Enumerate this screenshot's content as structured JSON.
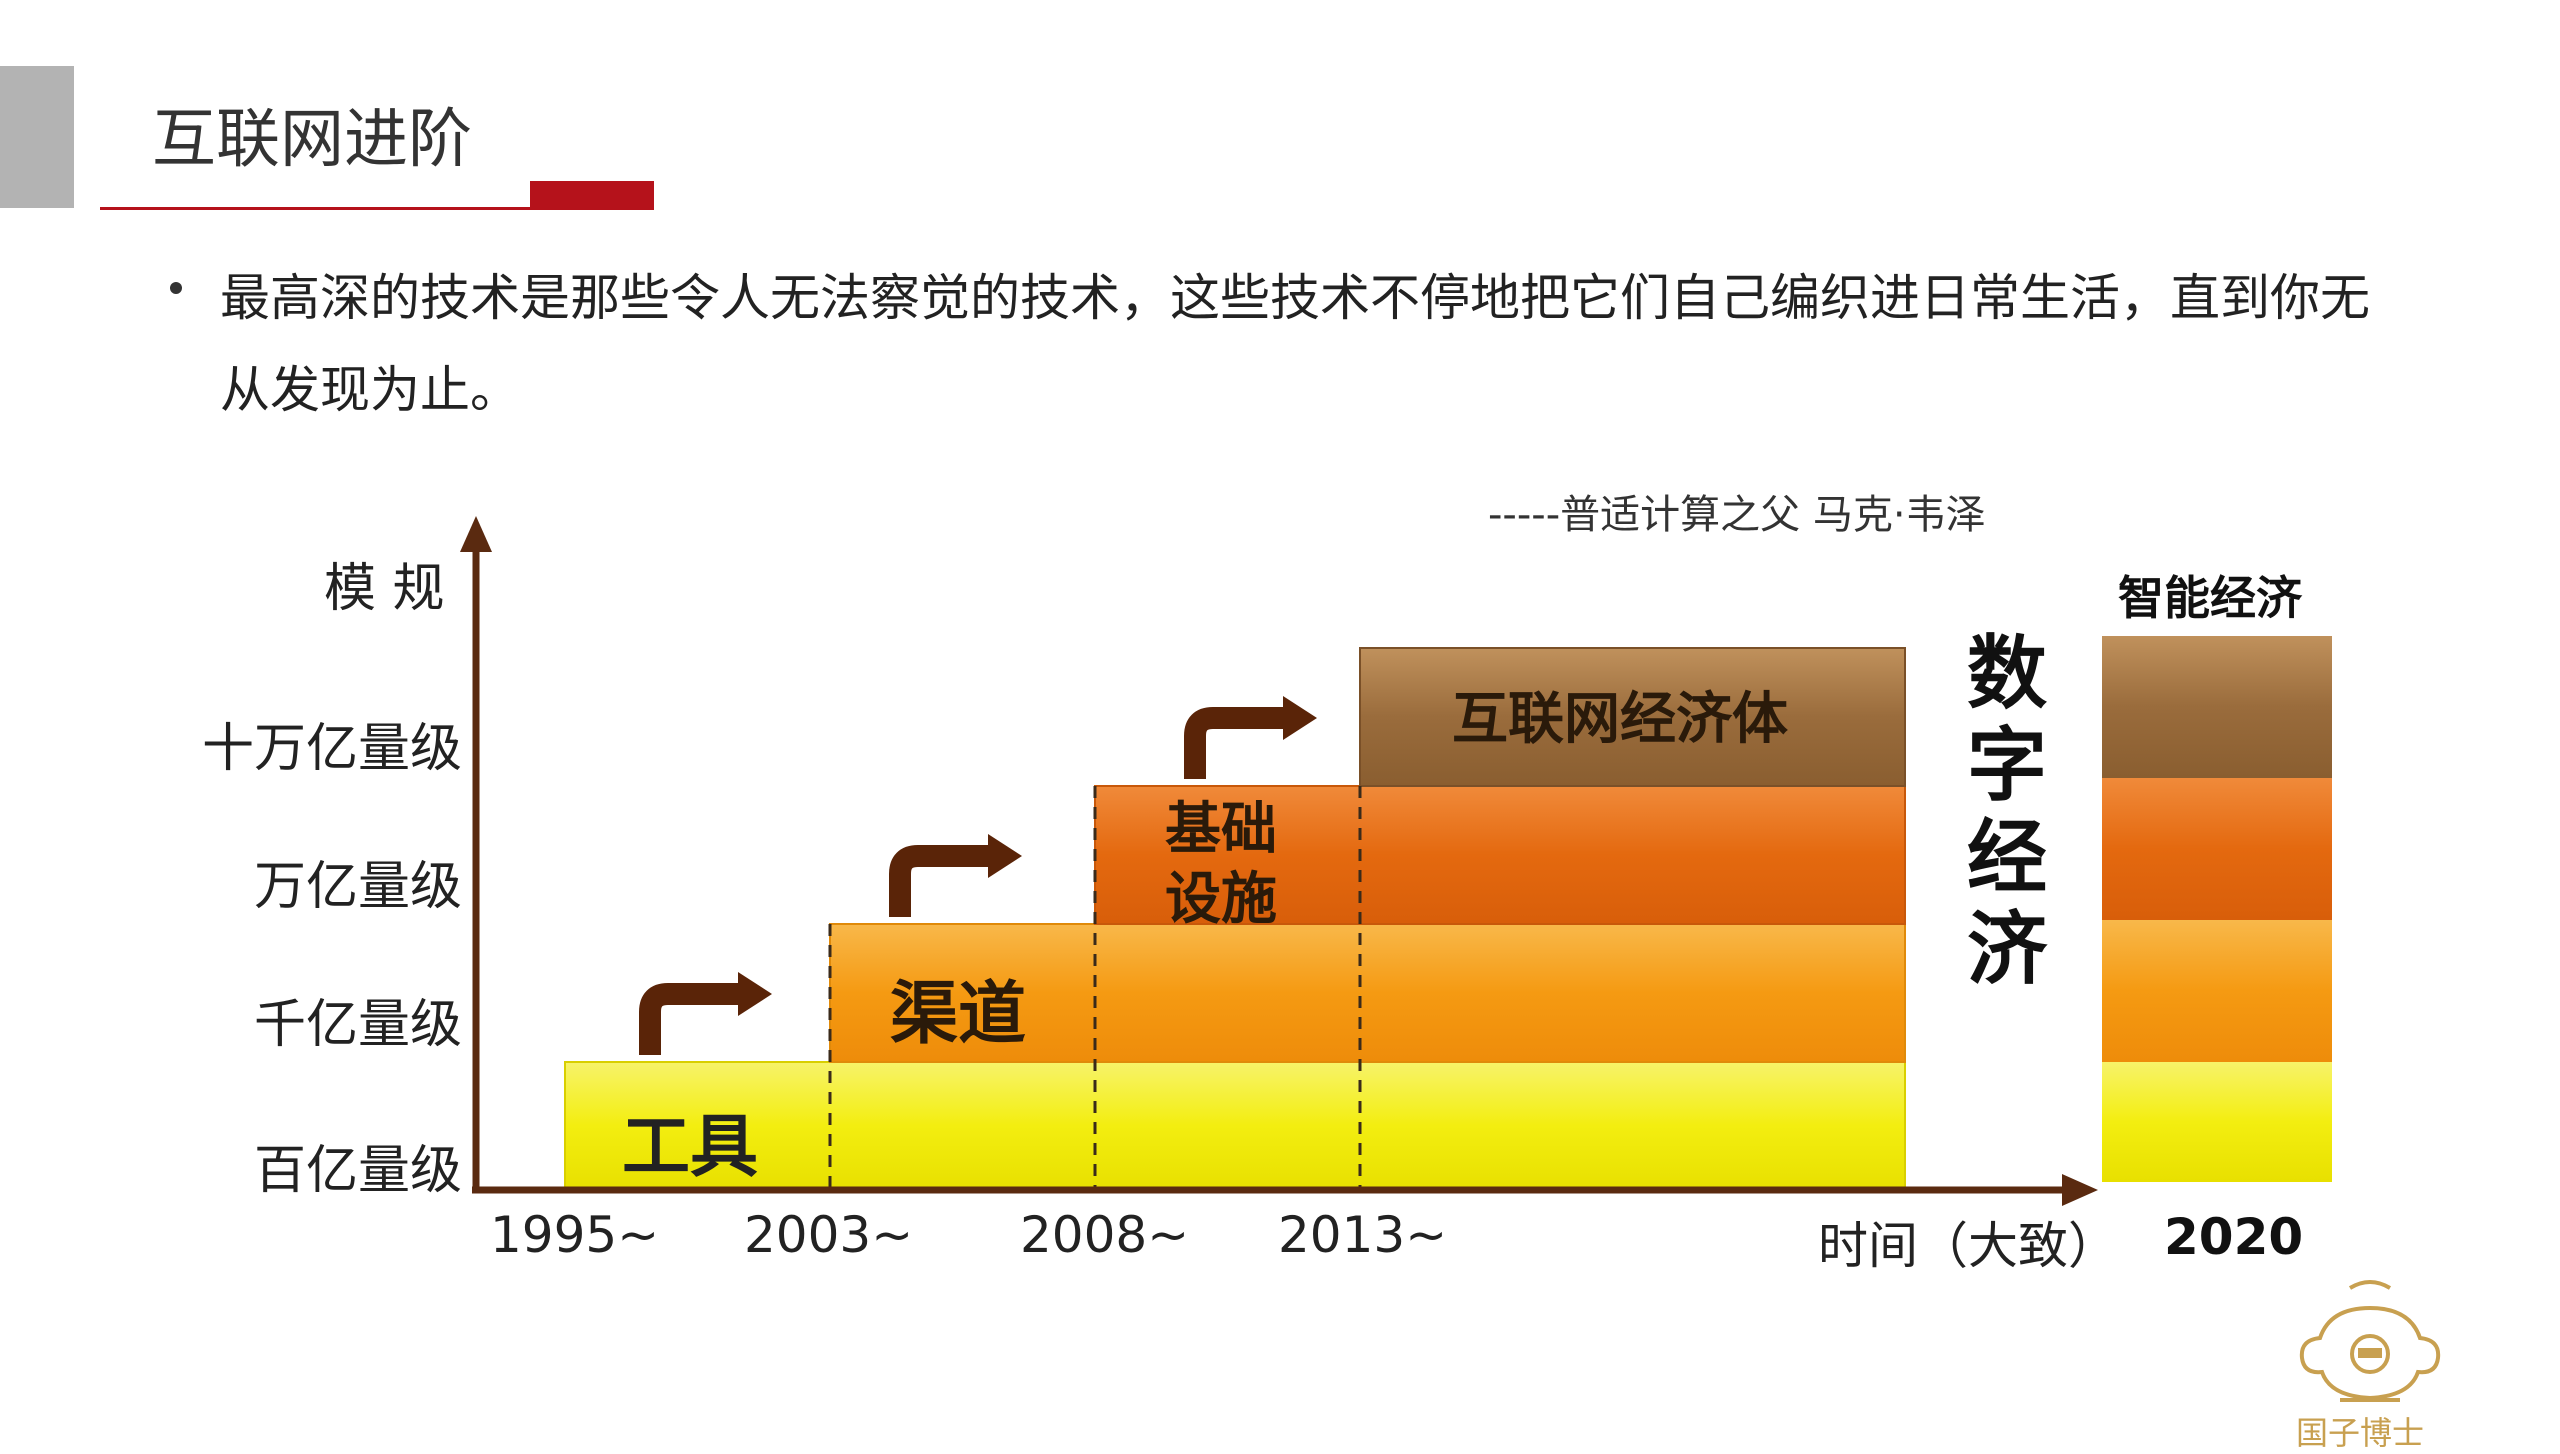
{
  "header": {
    "title": "互联网进阶"
  },
  "bullet": {
    "text": "最高深的技术是那些令人无法察觉的技术，这些技术不停地把它们自己编织进日常生活，直到你无从发现为止。"
  },
  "quote": "-----普适计算之父 马克·韦泽",
  "diagram": {
    "y_axis_title": "模 规",
    "x_axis_title": "时间（大致）",
    "levels": [
      "百亿量级",
      "千亿量级",
      "万亿量级",
      "十万亿量级"
    ],
    "stages": [
      {
        "label": "工具",
        "start": "1995~",
        "level": "百亿量级",
        "color": "#f5ef12"
      },
      {
        "label": "渠道",
        "start": "2003~",
        "level": "千亿量级",
        "color": "#f59a12"
      },
      {
        "label": "基础设施",
        "label_line1": "基础",
        "label_line2": "设施",
        "start": "2008~",
        "level": "万亿量级",
        "color": "#e4690f"
      },
      {
        "label": "互联网经济体",
        "start": "2013~",
        "level": "十万亿量级",
        "color": "#9a6c3c"
      }
    ],
    "digital_economy": "数字经济",
    "smart_economy": {
      "title": "智能经济",
      "year": "2020"
    }
  },
  "logo": {
    "name": "国子博士",
    "icon": "crest-icon"
  }
}
